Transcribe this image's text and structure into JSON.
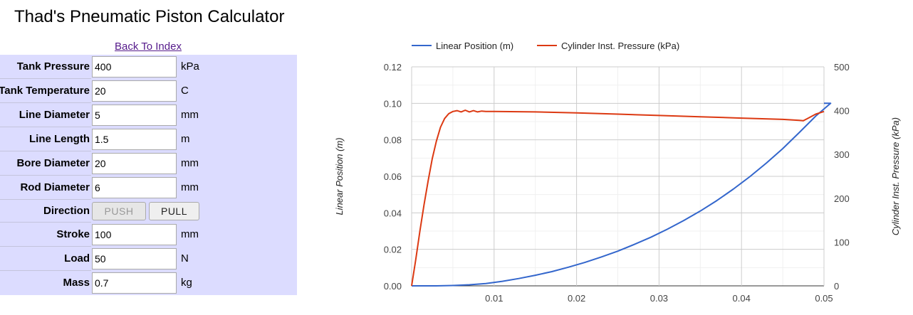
{
  "page_title": "Thad's Pneumatic Piston Calculator",
  "back_link": "Back To Index",
  "form": {
    "fields": [
      {
        "label": "Tank Pressure",
        "value": "400",
        "unit": "kPa"
      },
      {
        "label": "Tank Temperature",
        "value": "20",
        "unit": "C"
      },
      {
        "label": "Line Diameter",
        "value": "5",
        "unit": "mm"
      },
      {
        "label": "Line Length",
        "value": "1.5",
        "unit": "m"
      },
      {
        "label": "Bore Diameter",
        "value": "20",
        "unit": "mm"
      },
      {
        "label": "Rod Diameter",
        "value": "6",
        "unit": "mm"
      }
    ],
    "direction": {
      "label": "Direction",
      "push": "PUSH",
      "pull": "PULL",
      "selected": "PUSH"
    },
    "fields2": [
      {
        "label": "Stroke",
        "value": "100",
        "unit": "mm"
      },
      {
        "label": "Load",
        "value": "50",
        "unit": "N"
      },
      {
        "label": "Mass",
        "value": "0.7",
        "unit": "kg"
      }
    ]
  },
  "chart_data": {
    "type": "line",
    "legend_position": "top",
    "grid": true,
    "x": {
      "range": [
        0,
        0.05
      ],
      "ticks": [
        "0.01",
        "0.02",
        "0.03",
        "0.04",
        "0.05"
      ]
    },
    "y_left": {
      "label": "Linear Position (m)",
      "range": [
        0,
        0.12
      ],
      "ticks": [
        "0.00",
        "0.02",
        "0.04",
        "0.06",
        "0.08",
        "0.10",
        "0.12"
      ]
    },
    "y_right": {
      "label": "Cylinder Inst. Pressure (kPa)",
      "range": [
        0,
        500
      ],
      "ticks": [
        "0",
        "100",
        "200",
        "300",
        "400",
        "500"
      ]
    },
    "series": [
      {
        "name": "Linear Position (m)",
        "color": "#3366cc",
        "axis": "left",
        "points": [
          [
            0,
            0
          ],
          [
            0.003,
            0
          ],
          [
            0.005,
            0.0002
          ],
          [
            0.007,
            0.0006
          ],
          [
            0.009,
            0.0013
          ],
          [
            0.011,
            0.0025
          ],
          [
            0.013,
            0.004
          ],
          [
            0.015,
            0.0058
          ],
          [
            0.017,
            0.0078
          ],
          [
            0.019,
            0.0102
          ],
          [
            0.021,
            0.0128
          ],
          [
            0.023,
            0.0158
          ],
          [
            0.025,
            0.019
          ],
          [
            0.027,
            0.0227
          ],
          [
            0.029,
            0.0266
          ],
          [
            0.031,
            0.031
          ],
          [
            0.033,
            0.0358
          ],
          [
            0.035,
            0.041
          ],
          [
            0.037,
            0.0467
          ],
          [
            0.039,
            0.053
          ],
          [
            0.041,
            0.0598
          ],
          [
            0.043,
            0.0672
          ],
          [
            0.045,
            0.0752
          ],
          [
            0.047,
            0.084
          ],
          [
            0.049,
            0.093
          ],
          [
            0.0508,
            0.1
          ],
          [
            0.05,
            0.1
          ]
        ]
      },
      {
        "name": "Cylinder Inst. Pressure (kPa)",
        "color": "#dc3912",
        "axis": "right",
        "points": [
          [
            0,
            0
          ],
          [
            0.0005,
            60
          ],
          [
            0.001,
            125
          ],
          [
            0.0015,
            185
          ],
          [
            0.002,
            240
          ],
          [
            0.0025,
            290
          ],
          [
            0.003,
            330
          ],
          [
            0.0035,
            362
          ],
          [
            0.004,
            382
          ],
          [
            0.0045,
            393
          ],
          [
            0.005,
            398
          ],
          [
            0.0055,
            400
          ],
          [
            0.006,
            397
          ],
          [
            0.0065,
            401
          ],
          [
            0.007,
            397
          ],
          [
            0.0075,
            400
          ],
          [
            0.008,
            397
          ],
          [
            0.0085,
            399
          ],
          [
            0.009,
            398
          ],
          [
            0.01,
            398
          ],
          [
            0.015,
            397
          ],
          [
            0.02,
            395
          ],
          [
            0.025,
            392
          ],
          [
            0.03,
            389
          ],
          [
            0.035,
            386
          ],
          [
            0.04,
            383
          ],
          [
            0.045,
            380
          ],
          [
            0.047,
            378
          ],
          [
            0.0475,
            377
          ],
          [
            0.048,
            382
          ],
          [
            0.049,
            392
          ],
          [
            0.05,
            398
          ]
        ]
      }
    ]
  }
}
